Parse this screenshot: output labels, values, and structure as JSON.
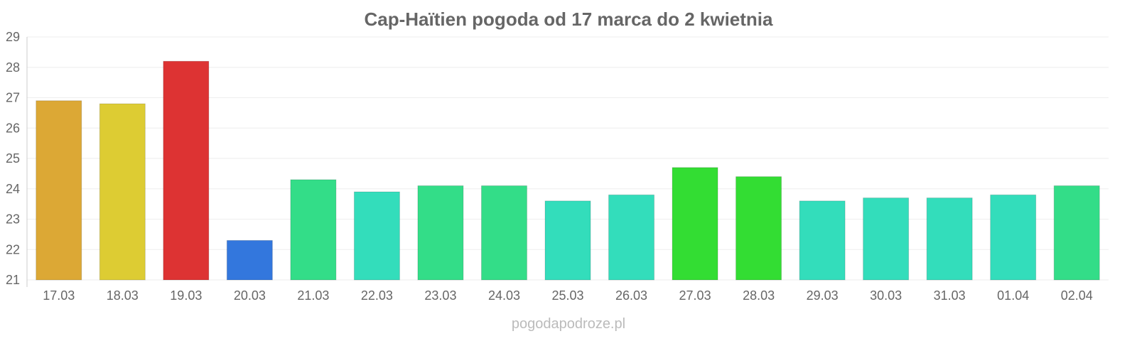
{
  "chart_data": {
    "type": "bar",
    "title": "Cap-Haïtien pogoda od 17 marca do 2 kwietnia",
    "xlabel": "",
    "ylabel": "",
    "ylim": [
      21,
      29
    ],
    "yticks": [
      "21",
      "22",
      "23",
      "24",
      "25",
      "26",
      "27",
      "28",
      "29"
    ],
    "grid": true,
    "categories": [
      "17.03",
      "18.03",
      "19.03",
      "20.03",
      "21.03",
      "22.03",
      "23.03",
      "24.03",
      "25.03",
      "26.03",
      "27.03",
      "28.03",
      "29.03",
      "30.03",
      "31.03",
      "01.04",
      "02.04"
    ],
    "values": [
      26.9,
      26.8,
      28.2,
      22.3,
      24.3,
      23.9,
      24.1,
      24.1,
      23.6,
      23.8,
      24.7,
      24.4,
      23.6,
      23.7,
      23.7,
      23.8,
      24.1
    ],
    "colors": [
      "#dca835",
      "#ddcc33",
      "#dd3333",
      "#3377dd",
      "#33dd88",
      "#33ddbb",
      "#33dd88",
      "#33dd88",
      "#33ddbb",
      "#33ddbb",
      "#33dd33",
      "#33dd33",
      "#33ddbb",
      "#33ddbb",
      "#33ddbb",
      "#33ddbb",
      "#33dd88"
    ]
  },
  "watermark": "pogodapodroze.pl"
}
